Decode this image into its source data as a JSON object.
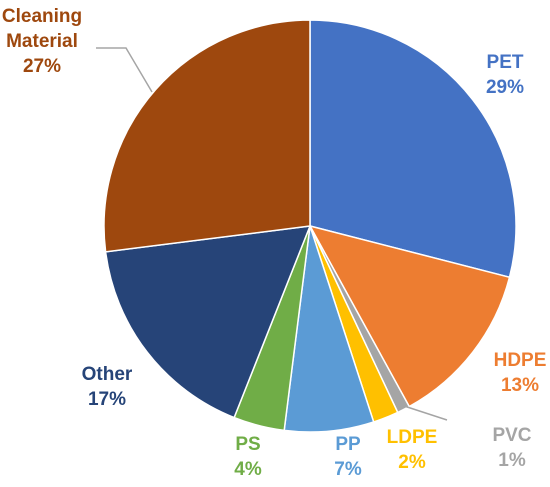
{
  "chart_data": {
    "type": "pie",
    "title": "",
    "start_angle_deg": 0,
    "direction": "clockwise",
    "slices": [
      {
        "name": "PET",
        "value": 29,
        "label": "29%",
        "color": "#4472C4",
        "label_color": "#4472C4"
      },
      {
        "name": "HDPE",
        "value": 13,
        "label": "13%",
        "color": "#ED7D31",
        "label_color": "#ED7D31"
      },
      {
        "name": "PVC",
        "value": 1,
        "label": "1%",
        "color": "#A5A5A5",
        "label_color": "#A5A5A5"
      },
      {
        "name": "LDPE",
        "value": 2,
        "label": "2%",
        "color": "#FFC000",
        "label_color": "#FFC000"
      },
      {
        "name": "PP",
        "value": 7,
        "label": "7%",
        "color": "#5B9BD5",
        "label_color": "#5B9BD5"
      },
      {
        "name": "PS",
        "value": 4,
        "label": "4%",
        "color": "#70AD47",
        "label_color": "#70AD47"
      },
      {
        "name": "Other",
        "value": 17,
        "label": "17%",
        "color": "#264478",
        "label_color": "#264478"
      },
      {
        "name": "Cleaning Material",
        "name_lines": [
          "Cleaning",
          "Material"
        ],
        "value": 27,
        "label": "27%",
        "color": "#9E480E",
        "label_color": "#9E480E"
      }
    ],
    "leader_lines": [
      "PVC",
      "Cleaning Material"
    ],
    "legend": "none"
  }
}
